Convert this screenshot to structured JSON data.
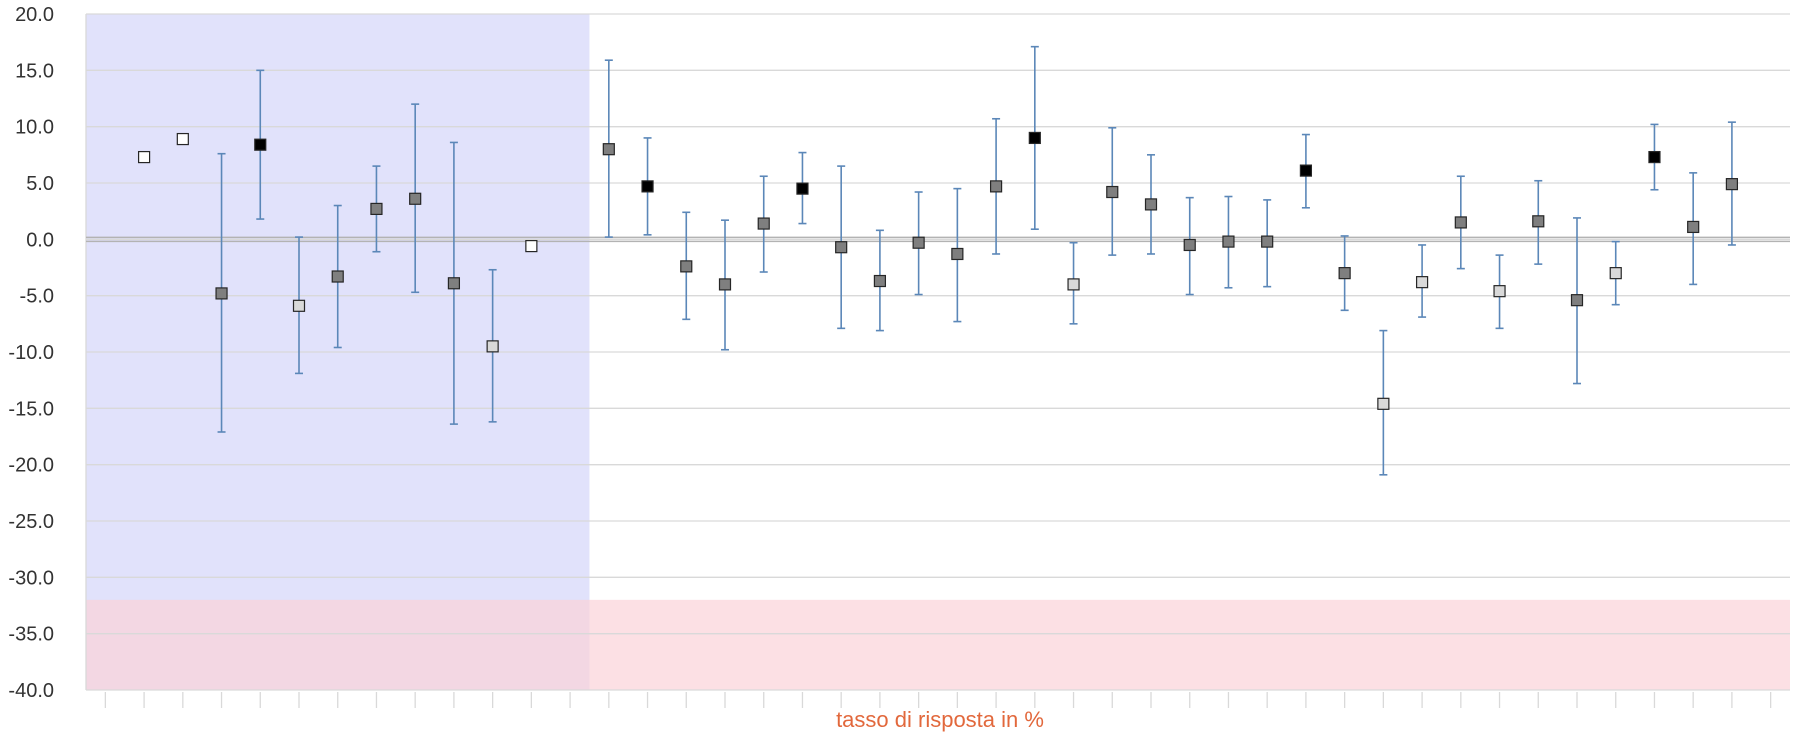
{
  "chart_data": {
    "type": "scatter",
    "title": "",
    "xlabel": "tasso di risposta in %",
    "ylabel": "",
    "ylim": [
      -40,
      20
    ],
    "ytick_step": 5,
    "ytick_labels": [
      "20.0",
      "15.0",
      "10.0",
      "5.0",
      "0.0",
      "-5.0",
      "-10.0",
      "-15.0",
      "-20.0",
      "-25.0",
      "-30.0",
      "-35.0",
      "-40.0"
    ],
    "xlim": [
      0.5,
      44.5
    ],
    "grid": true,
    "legend": "none",
    "bands": [
      {
        "x_from": 0.5,
        "x_to": 13.5,
        "y_from": -40,
        "y_to": 20,
        "color": "#e1e2fb"
      },
      {
        "x_from": 0.5,
        "x_to": 44.5,
        "y_from": -40,
        "y_to": -32,
        "color": "#fbd3d8"
      }
    ],
    "reference_line": 0,
    "points": [
      {
        "x": 2,
        "y": 7.3,
        "low": null,
        "high": null,
        "fill": "#ffffff"
      },
      {
        "x": 3,
        "y": 8.9,
        "low": null,
        "high": null,
        "fill": "#ffffff"
      },
      {
        "x": 4,
        "y": -4.8,
        "low": -17.1,
        "high": 7.6,
        "fill": "#7f7f7f"
      },
      {
        "x": 5,
        "y": 8.4,
        "low": 1.8,
        "high": 15.0,
        "fill": "#000000"
      },
      {
        "x": 6,
        "y": -5.9,
        "low": -11.9,
        "high": 0.2,
        "fill": "#d9d9d9"
      },
      {
        "x": 7,
        "y": -3.3,
        "low": -9.6,
        "high": 3.0,
        "fill": "#7f7f7f"
      },
      {
        "x": 8,
        "y": 2.7,
        "low": -1.1,
        "high": 6.5,
        "fill": "#7f7f7f"
      },
      {
        "x": 9,
        "y": 3.6,
        "low": -4.7,
        "high": 12.0,
        "fill": "#7f7f7f"
      },
      {
        "x": 10,
        "y": -3.9,
        "low": -16.4,
        "high": 8.6,
        "fill": "#7f7f7f"
      },
      {
        "x": 11,
        "y": -9.5,
        "low": -16.2,
        "high": -2.7,
        "fill": "#d9d9d9"
      },
      {
        "x": 12,
        "y": -0.6,
        "low": null,
        "high": null,
        "fill": "#ffffff"
      },
      {
        "x": 14,
        "y": 8.0,
        "low": 0.2,
        "high": 15.9,
        "fill": "#7f7f7f"
      },
      {
        "x": 15,
        "y": 4.7,
        "low": 0.4,
        "high": 9.0,
        "fill": "#000000"
      },
      {
        "x": 16,
        "y": -2.4,
        "low": -7.1,
        "high": 2.4,
        "fill": "#7f7f7f"
      },
      {
        "x": 17,
        "y": -4.0,
        "low": -9.8,
        "high": 1.7,
        "fill": "#7f7f7f"
      },
      {
        "x": 18,
        "y": 1.4,
        "low": -2.9,
        "high": 5.6,
        "fill": "#7f7f7f"
      },
      {
        "x": 19,
        "y": 4.5,
        "low": 1.4,
        "high": 7.7,
        "fill": "#000000"
      },
      {
        "x": 20,
        "y": -0.7,
        "low": -7.9,
        "high": 6.5,
        "fill": "#7f7f7f"
      },
      {
        "x": 21,
        "y": -3.7,
        "low": -8.1,
        "high": 0.8,
        "fill": "#7f7f7f"
      },
      {
        "x": 22,
        "y": -0.3,
        "low": -4.9,
        "high": 4.2,
        "fill": "#7f7f7f"
      },
      {
        "x": 23,
        "y": -1.3,
        "low": -7.3,
        "high": 4.5,
        "fill": "#7f7f7f"
      },
      {
        "x": 24,
        "y": 4.7,
        "low": -1.3,
        "high": 10.7,
        "fill": "#7f7f7f"
      },
      {
        "x": 25,
        "y": 9.0,
        "low": 0.9,
        "high": 17.1,
        "fill": "#000000"
      },
      {
        "x": 26,
        "y": -4.0,
        "low": -7.5,
        "high": -0.3,
        "fill": "#d9d9d9"
      },
      {
        "x": 27,
        "y": 4.2,
        "low": -1.4,
        "high": 9.9,
        "fill": "#7f7f7f"
      },
      {
        "x": 28,
        "y": 3.1,
        "low": -1.3,
        "high": 7.5,
        "fill": "#7f7f7f"
      },
      {
        "x": 29,
        "y": -0.5,
        "low": -4.9,
        "high": 3.7,
        "fill": "#7f7f7f"
      },
      {
        "x": 30,
        "y": -0.2,
        "low": -4.3,
        "high": 3.8,
        "fill": "#7f7f7f"
      },
      {
        "x": 31,
        "y": -0.2,
        "low": -4.2,
        "high": 3.5,
        "fill": "#7f7f7f"
      },
      {
        "x": 32,
        "y": 6.1,
        "low": 2.8,
        "high": 9.3,
        "fill": "#000000"
      },
      {
        "x": 33,
        "y": -3.0,
        "low": -6.3,
        "high": 0.3,
        "fill": "#7f7f7f"
      },
      {
        "x": 34,
        "y": -14.6,
        "low": -20.9,
        "high": -8.1,
        "fill": "#d9d9d9"
      },
      {
        "x": 35,
        "y": -3.8,
        "low": -6.9,
        "high": -0.5,
        "fill": "#d9d9d9"
      },
      {
        "x": 36,
        "y": 1.5,
        "low": -2.6,
        "high": 5.6,
        "fill": "#7f7f7f"
      },
      {
        "x": 37,
        "y": -4.6,
        "low": -7.9,
        "high": -1.4,
        "fill": "#d9d9d9"
      },
      {
        "x": 38,
        "y": 1.6,
        "low": -2.2,
        "high": 5.2,
        "fill": "#7f7f7f"
      },
      {
        "x": 39,
        "y": -5.4,
        "low": -12.8,
        "high": 1.9,
        "fill": "#7f7f7f"
      },
      {
        "x": 40,
        "y": -3.0,
        "low": -5.8,
        "high": -0.2,
        "fill": "#d9d9d9"
      },
      {
        "x": 41,
        "y": 7.3,
        "low": 4.4,
        "high": 10.2,
        "fill": "#000000"
      },
      {
        "x": 42,
        "y": 1.1,
        "low": -4.0,
        "high": 5.9,
        "fill": "#7f7f7f"
      },
      {
        "x": 43,
        "y": 4.9,
        "low": -0.5,
        "high": 10.4,
        "fill": "#7f7f7f"
      }
    ],
    "colors": {
      "error_bar": "#5b87b8",
      "grid": "#d9d9d9",
      "zero_line": "#b3b3b3",
      "marker_stroke": "#262626",
      "xlabel": "#e2683c",
      "tick_text": "#333333"
    }
  }
}
